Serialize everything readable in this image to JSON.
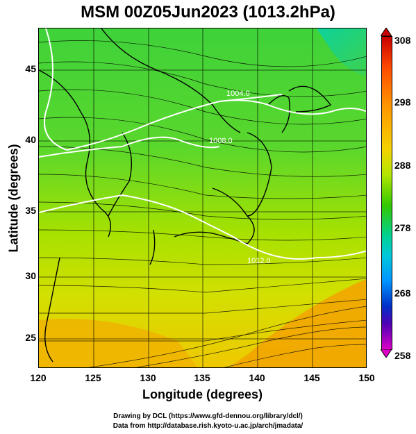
{
  "title": "MSM 00Z05Jun2023 (1013.2hPa)",
  "x_axis_label": "Longitude (degrees)",
  "y_axis_label": "Latitude  (degrees)",
  "x_ticks": [
    "120",
    "125",
    "130",
    "135",
    "140",
    "145",
    "150"
  ],
  "y_ticks": [
    "45",
    "40",
    "35",
    "30",
    "25"
  ],
  "colorbar_ticks": [
    "308",
    "298",
    "288",
    "278",
    "268",
    "258"
  ],
  "contour_labels": [
    "1004.0",
    "1008.0",
    "1012.0"
  ],
  "credits": {
    "line1": "Drawing by DCL (https://www.gfd-dennou.org/library/dcl/)",
    "line2": "Data from http://database.rish.kyoto-u.ac.jp/arch/jmadata/"
  },
  "colors": {
    "warm": "#f5a300",
    "mid": "#7ee000",
    "cool": "#00c8c8",
    "contour": "#ffffff",
    "coast": "#000000"
  }
}
